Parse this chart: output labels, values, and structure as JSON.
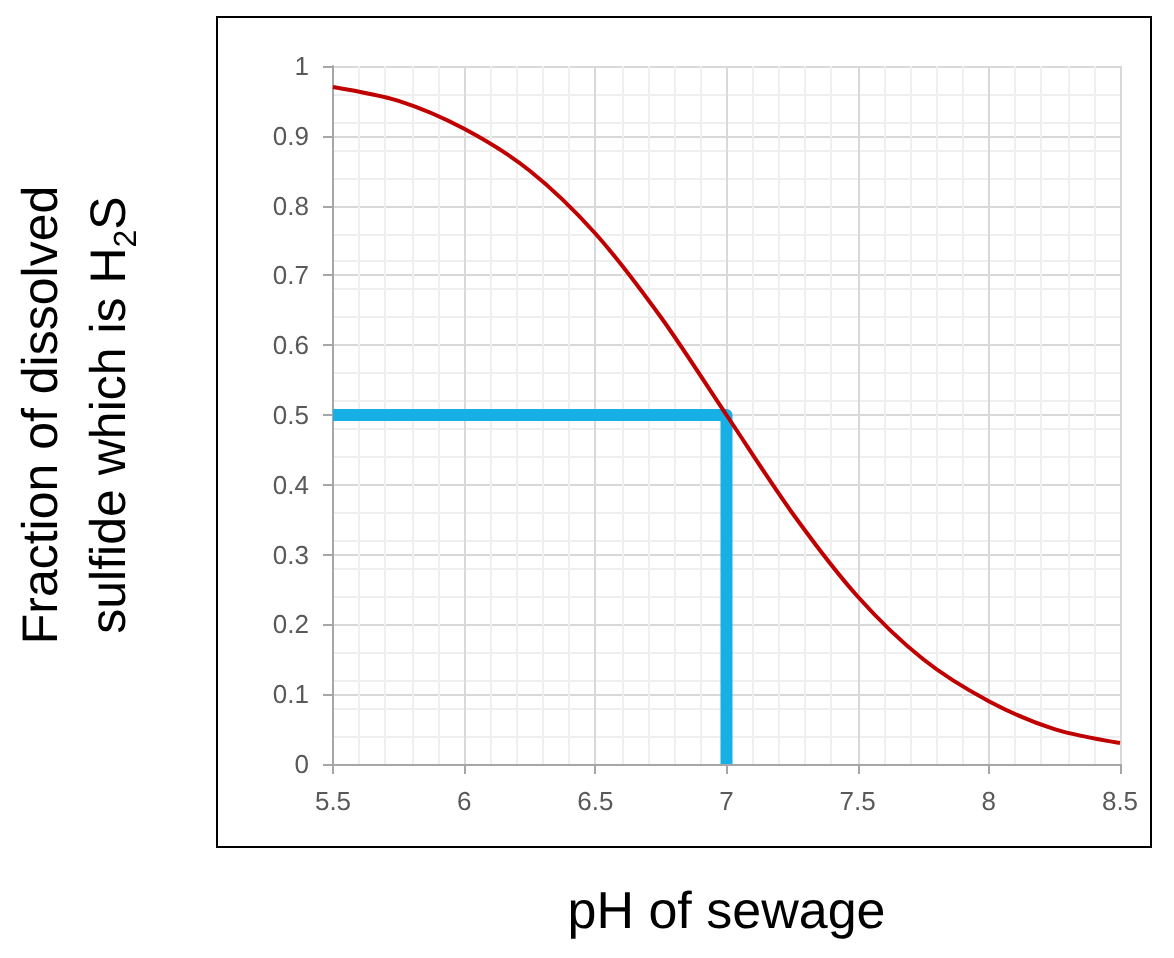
{
  "chart_data": {
    "type": "line",
    "xlabel": "pH of sewage",
    "ylabel": "Fraction of dissolved\nsulfide which is H$_{2}$S",
    "series": [
      {
        "color": "#c00000",
        "x": [
          5.5,
          5.75,
          6.0,
          6.25,
          6.5,
          6.75,
          7.0,
          7.25,
          7.5,
          7.75,
          8.0,
          8.25,
          8.5
        ],
        "values": [
          0.97,
          0.95,
          0.91,
          0.85,
          0.76,
          0.64,
          0.5,
          0.36,
          0.24,
          0.15,
          0.09,
          0.05,
          0.03
        ]
      },
      {
        "color": "#17b0e6",
        "x": [
          5.5,
          7,
          7
        ],
        "values": [
          0.5,
          0.5,
          0
        ]
      }
    ],
    "xlim": [
      5.5,
      8.5
    ],
    "xticks": [
      5.5,
      6,
      6.5,
      7,
      7.5,
      8,
      8.5
    ],
    "ylim": [
      0,
      1
    ],
    "yticks": [
      0,
      0.1,
      0.2,
      0.3,
      0.4,
      0.5,
      0.6,
      0.7,
      0.8,
      0.9,
      1
    ],
    "grid": true,
    "marker": "none",
    "line_style": "solid"
  }
}
